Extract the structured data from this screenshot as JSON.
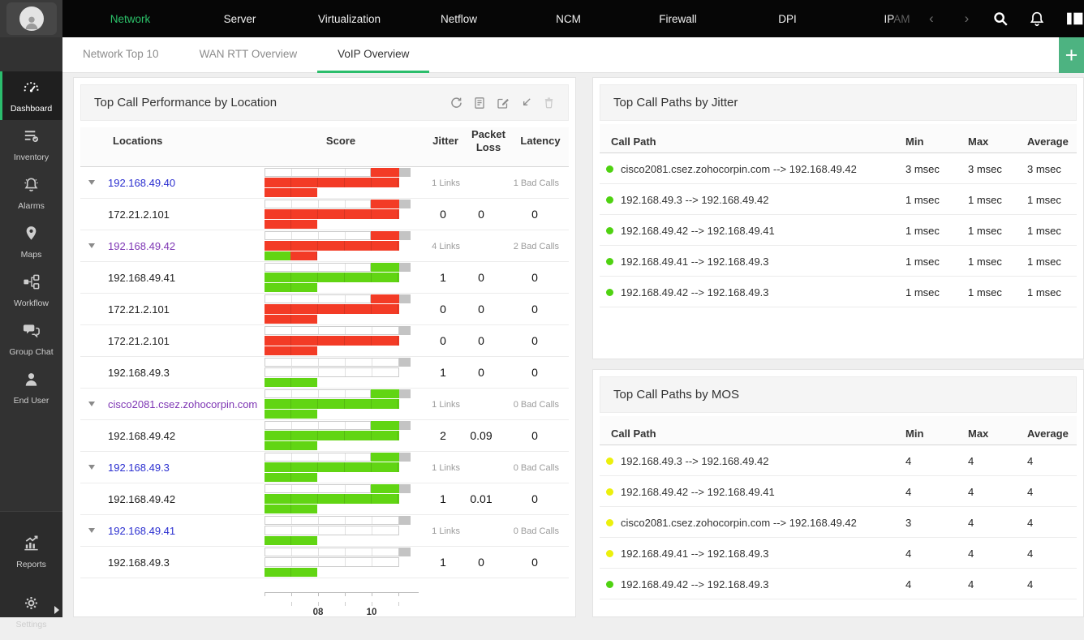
{
  "topnav": {
    "items": [
      {
        "label": "Network",
        "active": true
      },
      {
        "label": "Server"
      },
      {
        "label": "Virtualization"
      },
      {
        "label": "Netflow"
      },
      {
        "label": "NCM"
      },
      {
        "label": "Firewall"
      },
      {
        "label": "DPI"
      },
      {
        "label": "IPAM",
        "faded_part": "AM",
        "solid_part": "IP"
      }
    ],
    "pager_prev": "‹",
    "pager_next": "›",
    "icons": [
      "search-icon",
      "notifications-bell-icon",
      "apps-panel-icon"
    ]
  },
  "sidebar": {
    "items": [
      {
        "label": "Dashboard",
        "icon": "dashboard-gauge",
        "active": true
      },
      {
        "label": "Inventory",
        "icon": "inventory-list"
      },
      {
        "label": "Alarms",
        "icon": "alarm-bell"
      },
      {
        "label": "Maps",
        "icon": "map-pin"
      },
      {
        "label": "Workflow",
        "icon": "workflow-nodes"
      },
      {
        "label": "Group Chat",
        "icon": "chat-bubbles"
      },
      {
        "label": "End User",
        "icon": "user-person"
      }
    ],
    "footer_items": [
      {
        "label": "Reports",
        "icon": "reports-chart"
      },
      {
        "label": "Settings",
        "icon": "settings-gear",
        "has_arrow": true
      }
    ]
  },
  "tabs": {
    "items": [
      {
        "label": "Network Top 10"
      },
      {
        "label": "WAN RTT Overview"
      },
      {
        "label": "VoIP Overview",
        "active": true
      }
    ],
    "add_label": "+"
  },
  "location_panel": {
    "title": "Top Call Performance by Location",
    "toolbar_icons": [
      "refresh-icon",
      "export-icon",
      "edit-icon",
      "resize-icon",
      "delete-icon"
    ],
    "columns": {
      "locations": "Locations",
      "score": "Score",
      "jitter": "Jitter",
      "packet_loss": "Packet Loss",
      "latency": "Latency"
    },
    "axis_labels": [
      {
        "text": "08",
        "pos": 66
      },
      {
        "text": "10",
        "pos": 132
      }
    ],
    "rows": [
      {
        "type": "group",
        "location": "192.168.49.40",
        "link_color": "blue",
        "links": "1 Links",
        "bad_calls": "1 Bad Calls",
        "bar": {
          "tip": "red",
          "mid": "red",
          "bottom": [
            {
              "color": "red",
              "from": 0,
              "to": 0.36
            }
          ]
        }
      },
      {
        "type": "child",
        "location": "172.21.2.101",
        "jitter": "0",
        "packet_loss": "0",
        "latency": "0",
        "bar": {
          "tip": "red",
          "mid": "red",
          "bottom": [
            {
              "color": "red",
              "from": 0,
              "to": 0.36
            }
          ]
        }
      },
      {
        "type": "group",
        "location": "192.168.49.42",
        "link_color": "purple",
        "links": "4 Links",
        "bad_calls": "2 Bad Calls",
        "bar": {
          "tip": "red",
          "mid": "red",
          "bottom": [
            {
              "color": "green",
              "from": 0,
              "to": 0.175
            },
            {
              "color": "red",
              "from": 0.175,
              "to": 0.36
            }
          ]
        }
      },
      {
        "type": "child",
        "location": "192.168.49.41",
        "jitter": "1",
        "packet_loss": "0",
        "latency": "0",
        "bar": {
          "tip": "green",
          "mid": "green",
          "bottom": [
            {
              "color": "green",
              "from": 0,
              "to": 0.36
            }
          ]
        }
      },
      {
        "type": "child",
        "location": "172.21.2.101",
        "jitter": "0",
        "packet_loss": "0",
        "latency": "0",
        "bar": {
          "tip": "red",
          "mid": "red",
          "bottom": [
            {
              "color": "red",
              "from": 0,
              "to": 0.36
            }
          ]
        }
      },
      {
        "type": "child",
        "location": "172.21.2.101",
        "jitter": "0",
        "packet_loss": "0",
        "latency": "0",
        "bar": {
          "tip": null,
          "mid": "red",
          "bottom": [
            {
              "color": "red",
              "from": 0,
              "to": 0.36
            }
          ]
        }
      },
      {
        "type": "child",
        "location": "192.168.49.3",
        "jitter": "1",
        "packet_loss": "0",
        "latency": "0",
        "bar": {
          "tip": null,
          "mid": "frame",
          "bottom": [
            {
              "color": "green",
              "from": 0,
              "to": 0.36
            }
          ]
        }
      },
      {
        "type": "group",
        "location": "cisco2081.csez.zohocorpin.com",
        "link_color": "purple",
        "links": "1 Links",
        "bad_calls": "0 Bad Calls",
        "bar": {
          "tip": "green",
          "mid": "green",
          "bottom": [
            {
              "color": "green",
              "from": 0,
              "to": 0.36
            }
          ]
        }
      },
      {
        "type": "child",
        "location": "192.168.49.42",
        "jitter": "2",
        "packet_loss": "0.09",
        "latency": "0",
        "bar": {
          "tip": "green",
          "mid": "green",
          "bottom": [
            {
              "color": "green",
              "from": 0,
              "to": 0.36
            }
          ]
        }
      },
      {
        "type": "group",
        "location": "192.168.49.3",
        "link_color": "blue",
        "links": "1 Links",
        "bad_calls": "0 Bad Calls",
        "bar": {
          "tip": "green",
          "mid": "green",
          "bottom": [
            {
              "color": "green",
              "from": 0,
              "to": 0.36
            }
          ]
        }
      },
      {
        "type": "child",
        "location": "192.168.49.42",
        "jitter": "1",
        "packet_loss": "0.01",
        "latency": "0",
        "bar": {
          "tip": "green",
          "mid": "green",
          "bottom": [
            {
              "color": "green",
              "from": 0,
              "to": 0.36
            }
          ]
        }
      },
      {
        "type": "group",
        "location": "192.168.49.41",
        "link_color": "blue",
        "links": "1 Links",
        "bad_calls": "0 Bad Calls",
        "bar": {
          "tip": null,
          "mid": "frame",
          "bottom": [
            {
              "color": "green",
              "from": 0,
              "to": 0.36
            }
          ]
        }
      },
      {
        "type": "child",
        "location": "192.168.49.3",
        "jitter": "1",
        "packet_loss": "0",
        "latency": "0",
        "bar": {
          "tip": null,
          "mid": "frame",
          "bottom": [
            {
              "color": "green",
              "from": 0,
              "to": 0.36
            }
          ]
        }
      }
    ]
  },
  "jitter_panel": {
    "title": "Top Call Paths by Jitter",
    "columns": {
      "path": "Call Path",
      "min": "Min",
      "max": "Max",
      "avg": "Average"
    },
    "rows": [
      {
        "dot": "green",
        "path": "cisco2081.csez.zohocorpin.com --> 192.168.49.42",
        "min": "3 msec",
        "max": "3 msec",
        "avg": "3 msec"
      },
      {
        "dot": "green",
        "path": "192.168.49.3 --> 192.168.49.42",
        "min": "1 msec",
        "max": "1 msec",
        "avg": "1 msec"
      },
      {
        "dot": "green",
        "path": "192.168.49.42 --> 192.168.49.41",
        "min": "1 msec",
        "max": "1 msec",
        "avg": "1 msec"
      },
      {
        "dot": "green",
        "path": "192.168.49.41 --> 192.168.49.3",
        "min": "1 msec",
        "max": "1 msec",
        "avg": "1 msec"
      },
      {
        "dot": "green",
        "path": "192.168.49.42 --> 192.168.49.3",
        "min": "1 msec",
        "max": "1 msec",
        "avg": "1 msec"
      }
    ]
  },
  "mos_panel": {
    "title": "Top Call Paths by MOS",
    "columns": {
      "path": "Call Path",
      "min": "Min",
      "max": "Max",
      "avg": "Average"
    },
    "rows": [
      {
        "dot": "yellow",
        "path": "192.168.49.3 --> 192.168.49.42",
        "min": "4",
        "max": "4",
        "avg": "4"
      },
      {
        "dot": "yellow",
        "path": "192.168.49.42 --> 192.168.49.41",
        "min": "4",
        "max": "4",
        "avg": "4"
      },
      {
        "dot": "yellow",
        "path": "cisco2081.csez.zohocorpin.com --> 192.168.49.42",
        "min": "3",
        "max": "4",
        "avg": "4"
      },
      {
        "dot": "yellow",
        "path": "192.168.49.41 --> 192.168.49.3",
        "min": "4",
        "max": "4",
        "avg": "4"
      },
      {
        "dot": "green",
        "path": "192.168.49.42 --> 192.168.49.3",
        "min": "4",
        "max": "4",
        "avg": "4"
      }
    ]
  },
  "colors": {
    "accent_green": "#2bc169",
    "tab_underline": "#2bbd6b",
    "add_tile_green": "#4db381",
    "bar_red": "#f33b26",
    "bar_green": "#61d513",
    "bar_gray": "#c4c4c4",
    "dot_green": "#4fd211",
    "dot_yellow": "#ecf00c",
    "link_blue": "#2b2fd0",
    "link_purple": "#7e36b4"
  }
}
